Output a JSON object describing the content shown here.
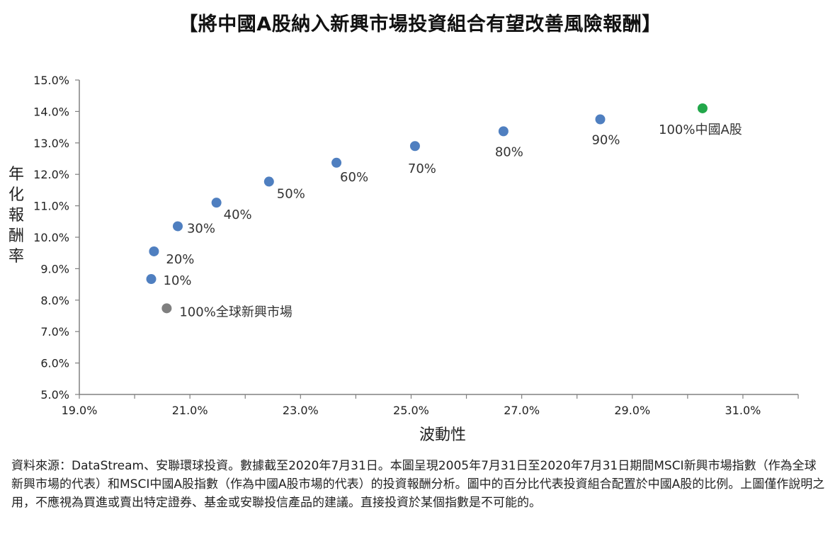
{
  "chart_data": {
    "type": "scatter",
    "title": "【將中國A股納入新興市場投資組合有望改善風險報酬】",
    "xlabel": "波動性",
    "ylabel": "年化報酬率",
    "xlim": [
      19.0,
      32.0
    ],
    "ylim": [
      5.0,
      15.0
    ],
    "x_ticks": [
      "19.0%",
      "21.0%",
      "23.0%",
      "25.0%",
      "27.0%",
      "29.0%",
      "31.0%"
    ],
    "y_ticks": [
      "5.0%",
      "6.0%",
      "7.0%",
      "8.0%",
      "9.0%",
      "10.0%",
      "11.0%",
      "12.0%",
      "13.0%",
      "14.0%",
      "15.0%"
    ],
    "grid": false,
    "legend": "none",
    "points": [
      {
        "x": 20.58,
        "y": 7.74,
        "label": "100%全球新興市場",
        "color": "#7f7f7f"
      },
      {
        "x": 20.3,
        "y": 8.67,
        "label": "10%",
        "color": "#4f7fc0"
      },
      {
        "x": 20.35,
        "y": 9.55,
        "label": "20%",
        "color": "#4f7fc0"
      },
      {
        "x": 20.78,
        "y": 10.35,
        "label": "30%",
        "color": "#4f7fc0"
      },
      {
        "x": 21.48,
        "y": 11.1,
        "label": "40%",
        "color": "#4f7fc0"
      },
      {
        "x": 22.43,
        "y": 11.77,
        "label": "50%",
        "color": "#4f7fc0"
      },
      {
        "x": 23.65,
        "y": 12.37,
        "label": "60%",
        "color": "#4f7fc0"
      },
      {
        "x": 25.07,
        "y": 12.9,
        "label": "70%",
        "color": "#4f7fc0"
      },
      {
        "x": 26.67,
        "y": 13.37,
        "label": "80%",
        "color": "#4f7fc0"
      },
      {
        "x": 28.42,
        "y": 13.75,
        "label": "90%",
        "color": "#4f7fc0"
      },
      {
        "x": 30.27,
        "y": 14.1,
        "label": "100%中國A股",
        "color": "#22a74a"
      }
    ]
  },
  "source_note": "資料來源：DataStream、安聯環球投資。數據截至2020年7月31日。本圖呈現2005年7月31日至2020年7月31日期間MSCI新興市場指數（作為全球新興市場的代表）和MSCI中國A股指數（作為中國A股市場的代表）的投資報酬分析。圖中的百分比代表投資組合配置於中國A股的比例。上圖僅作說明之用，不應視為買進或賣出特定證券、基金或安聯投信產品的建議。直接投資於某個指數是不可能的。"
}
